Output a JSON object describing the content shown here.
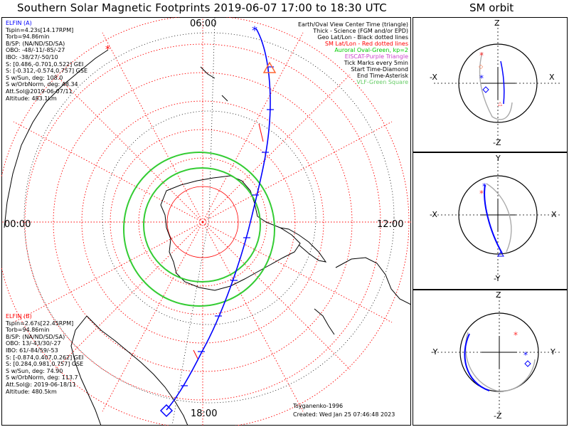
{
  "title": "Southern Solar Magnetic Footprints 2019-06-07 17:00 to 18:30 UTC",
  "orbit_title": "SM orbit",
  "mlt_labels": {
    "top": "06:00",
    "left": "00:00",
    "right": "12:00",
    "bottom": "18:00"
  },
  "legend": [
    {
      "text": "Earth/Oval View Center Time (triangle)",
      "color": "#000000"
    },
    {
      "text": "Thick - Science (FGM and/or EPD)",
      "color": "#000000"
    },
    {
      "text": "Geo Lat/Lon - Black dotted lines",
      "color": "#000000"
    },
    {
      "text": "SM Lat/Lon - Red dotted lines",
      "color": "#ff0000"
    },
    {
      "text": "Auroral Oval-Green, kp=2",
      "color": "#00cc00"
    },
    {
      "text": "EISCAT-Purple Triangle",
      "color": "#cc44cc"
    },
    {
      "text": "Tick Marks every 5min",
      "color": "#000000"
    },
    {
      "text": "Start Time-Diamond",
      "color": "#000000"
    },
    {
      "text": "End Time-Asterisk",
      "color": "#000000"
    },
    {
      "text": "VLF-Green Square",
      "color": "#66cc66"
    }
  ],
  "elfin_a": {
    "name": "ELFIN (A)",
    "color": "#0000ff",
    "lines": [
      "Tspin=4.23s[14.17RPM]",
      "Torb=94.86min",
      "B/SP: (NA/ND/SD/SA)",
      "OBO: -48/-11/-85/-27",
      "IBO: -38/27/-50/10",
      "S: [0.486,-0.701,0.522] GEI",
      "S: [-0.312,-0.574,0.757] GSE",
      "S w/Sun, deg: 108.0",
      "S w/OrbNorm, deg: 48.34",
      "Att.Sol@2019-06-07/11",
      "Altitude: 483.1km"
    ]
  },
  "elfin_b": {
    "name": "ELFIN (B)",
    "color": "#ff0000",
    "lines": [
      "Tspin=2.67s[22.45RPM]",
      "Torb=94.86min",
      "B/SP: (NA/ND/SD/SA)",
      "OBO: 13/-43/30/-27",
      "IBO: 61/-84/59/-53",
      "S: [-0.874,0.407,0.262] GEI",
      "S: [0.284,0.981,0.757] GSE",
      "S w/Sun, deg: 74.90",
      "S w/OrbNorm, deg: 113.7",
      "Att.Sol@: 2019-06-18/11",
      "Altitude: 480.5km"
    ]
  },
  "credits": {
    "author": "Tsyganenko-1996",
    "created": "Created: Wed Jan 25 07:46:48 2023"
  },
  "orbit_panels": [
    {
      "top": "Z",
      "bottom": "-Z",
      "left": "-X",
      "right": "X"
    },
    {
      "top": "Y",
      "bottom": "-Y",
      "left": "-X",
      "right": "X"
    },
    {
      "top": "Z",
      "bottom": "-Z",
      "left": "-Y",
      "right": "Y"
    }
  ],
  "colors": {
    "geo_grid": "#000000",
    "sm_grid": "#ff0000",
    "oval": "#33cc33",
    "track_a": "#0000ff",
    "track_b": "#ff0000",
    "orbit_gray": "#aaaaaa"
  }
}
